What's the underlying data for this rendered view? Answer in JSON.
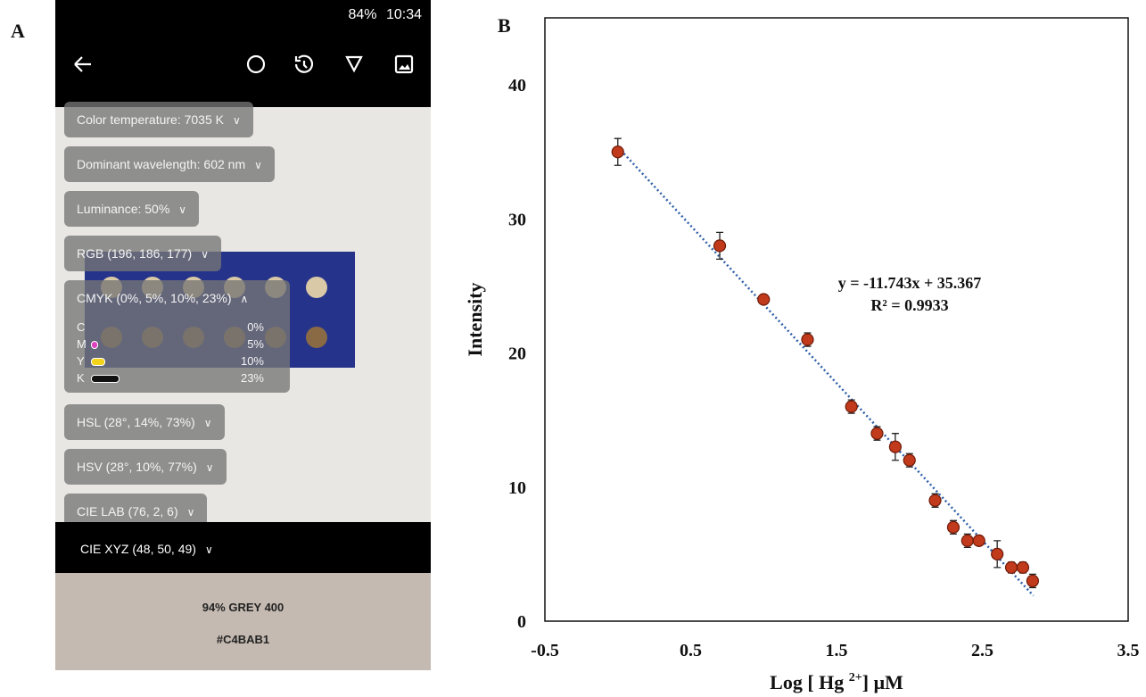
{
  "panel_a": {
    "label": "A",
    "status": {
      "battery": "84%",
      "time": "10:34"
    },
    "items": [
      "Color temperature: 7035 K",
      "Dominant wavelength: 602 nm",
      "Luminance: 50%",
      "RGB (196, 186, 177)",
      "CMYK (0%, 5%, 10%, 23%)",
      "HSL (28°, 14%, 73%)",
      "HSV (28°, 10%, 77%)",
      "CIE LAB (76, 2, 6)"
    ],
    "cmyk_rows": [
      {
        "label": "C",
        "value": "0%"
      },
      {
        "label": "M",
        "value": "5%"
      },
      {
        "label": "Y",
        "value": "10%"
      },
      {
        "label": "K",
        "value": "23%"
      }
    ],
    "footer_item": "CIE XYZ (48, 50, 49)",
    "swatch": {
      "name": "94% GREY 400",
      "hex": "#C4BAB1"
    }
  },
  "chart_data": {
    "type": "scatter",
    "panel_label": "B",
    "x_label": {
      "text": "Log [ Hg ",
      "superscript": "2+",
      "suffix": "] μM"
    },
    "y_label": "Intensity",
    "x": [
      0,
      0.699,
      1,
      1.301,
      1.602,
      1.778,
      1.903,
      2,
      2.176,
      2.301,
      2.398,
      2.477,
      2.602,
      2.699,
      2.778,
      2.845
    ],
    "values": [
      35,
      28,
      24,
      21,
      16,
      14,
      13,
      12,
      9,
      7,
      6,
      6,
      5,
      4,
      4,
      3
    ],
    "errors": [
      1,
      1,
      0.3,
      0.5,
      0.5,
      0.5,
      1,
      0.5,
      0.5,
      0.5,
      0.5,
      0.3,
      1,
      0.4,
      0.4,
      0.5
    ],
    "color": "#c23a1c",
    "trendline": {
      "slope": -11.743,
      "intercept": 35.367,
      "x": [
        0,
        2.85
      ],
      "color": "#2f5fa8"
    },
    "annotations": {
      "equation": "y = -11.743x + 35.367",
      "r2": "R² = 0.9933"
    },
    "xlim": [
      -0.5,
      3.5
    ],
    "xticks": [
      -0.5,
      0.5,
      1.5,
      2.5,
      3.5
    ],
    "ylim": [
      0,
      45
    ],
    "yticks": [
      0,
      10,
      20,
      30,
      40
    ],
    "grid": false
  }
}
